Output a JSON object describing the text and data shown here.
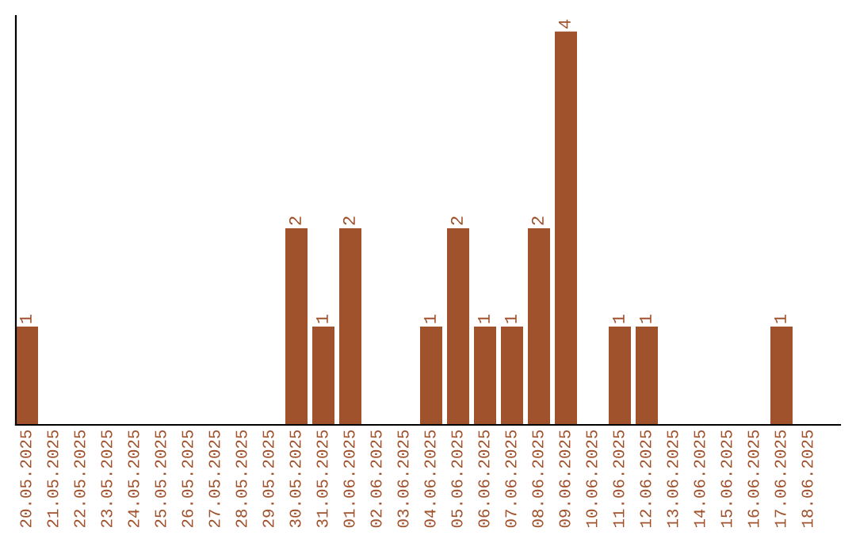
{
  "chart_data": {
    "type": "bar",
    "categories": [
      "20.05.2025",
      "21.05.2025",
      "22.05.2025",
      "23.05.2025",
      "24.05.2025",
      "25.05.2025",
      "26.05.2025",
      "27.05.2025",
      "28.05.2025",
      "29.05.2025",
      "30.05.2025",
      "31.05.2025",
      "01.06.2025",
      "02.06.2025",
      "03.06.2025",
      "04.06.2025",
      "05.06.2025",
      "06.06.2025",
      "07.06.2025",
      "08.06.2025",
      "09.06.2025",
      "10.06.2025",
      "11.06.2025",
      "12.06.2025",
      "13.06.2025",
      "14.06.2025",
      "15.06.2025",
      "16.06.2025",
      "17.06.2025",
      "18.06.2025"
    ],
    "values": [
      1,
      0,
      0,
      0,
      0,
      0,
      0,
      0,
      0,
      0,
      2,
      1,
      2,
      0,
      0,
      1,
      2,
      1,
      1,
      2,
      4,
      0,
      1,
      1,
      0,
      0,
      0,
      0,
      1,
      0
    ],
    "value_labels": [
      "1",
      null,
      null,
      null,
      null,
      null,
      null,
      null,
      null,
      null,
      "2",
      "1",
      "2",
      null,
      null,
      "1",
      "2",
      "1",
      "1",
      "2",
      "4",
      null,
      "1",
      "1",
      null,
      null,
      null,
      null,
      "1",
      null
    ],
    "color": "#a0522d",
    "ylim": [
      0,
      4.16
    ],
    "tick_labels": "x",
    "grid": false,
    "legend": false
  }
}
